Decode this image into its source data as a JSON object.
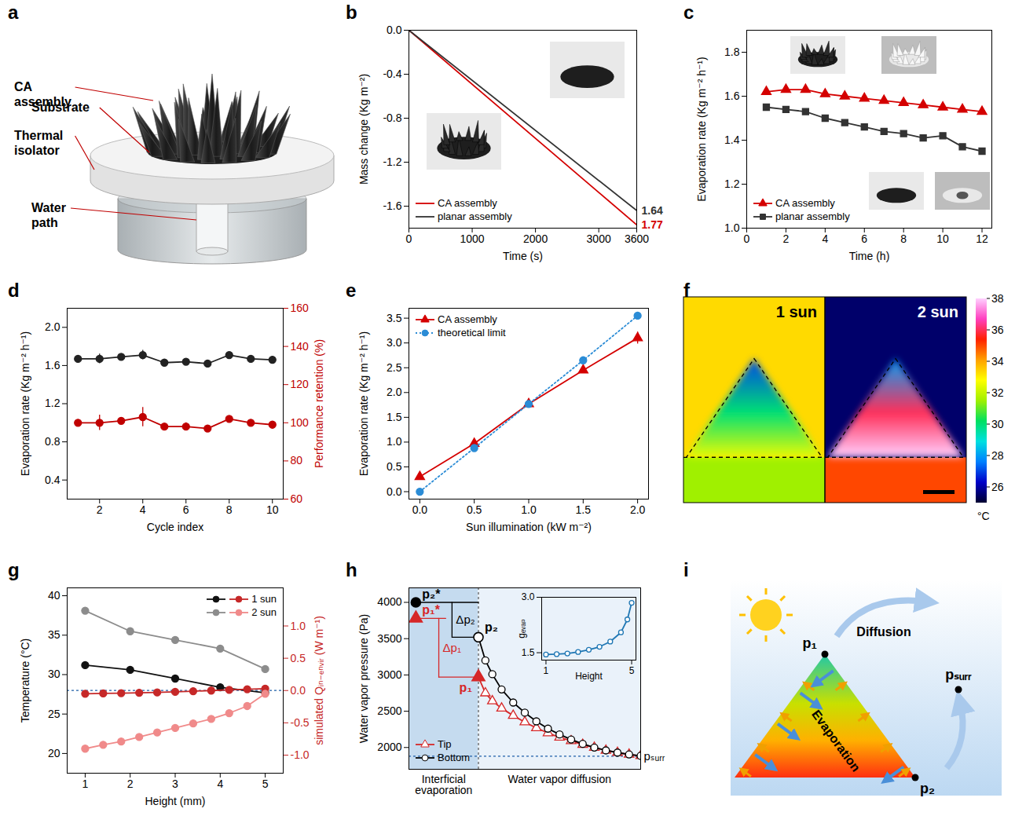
{
  "chart_data": [
    {
      "panel": "b",
      "type": "line",
      "xlabel": "Time (s)",
      "ylabel": "Mass change (Kg m⁻²)",
      "x": [
        0,
        3600
      ],
      "xlim": [
        0,
        3600
      ],
      "xticks": [
        0,
        1000,
        2000,
        3000,
        3600
      ],
      "ylim": [
        -1.8,
        0
      ],
      "yticks": [
        {
          "value": 0,
          "label": "0.0"
        },
        -0.4,
        -0.8,
        -1.2,
        -1.6
      ],
      "legend": "bottom-left",
      "series": [
        {
          "name": "CA assembly",
          "color": "#d40000",
          "values": [
            0,
            -1.77
          ],
          "end_label": "1.77"
        },
        {
          "name": "planar assembly",
          "color": "#333333",
          "values": [
            0,
            -1.64
          ],
          "end_label": "1.64"
        }
      ]
    },
    {
      "panel": "c",
      "type": "line",
      "xlabel": "Time (h)",
      "ylabel": "Evaporation rate (Kg m⁻² h⁻¹)",
      "x": [
        1,
        2,
        3,
        4,
        5,
        6,
        7,
        8,
        9,
        10,
        11,
        12
      ],
      "xlim": [
        0,
        12.5
      ],
      "xticks": [
        0,
        2,
        4,
        6,
        8,
        10,
        12
      ],
      "ylim": [
        1.0,
        1.9
      ],
      "yticks": [
        {
          "value": 1,
          "label": "1.0"
        },
        1.2,
        1.4,
        1.6,
        1.8
      ],
      "legend": "bottom-left",
      "series": [
        {
          "name": "CA assembly",
          "color": "#d40000",
          "marker": "triangle",
          "values": [
            1.62,
            1.63,
            1.63,
            1.61,
            1.6,
            1.59,
            1.58,
            1.57,
            1.56,
            1.55,
            1.54,
            1.53
          ]
        },
        {
          "name": "planar assembly",
          "color": "#333333",
          "marker": "square",
          "values": [
            1.55,
            1.54,
            1.53,
            1.5,
            1.48,
            1.46,
            1.44,
            1.43,
            1.41,
            1.42,
            1.37,
            1.35
          ]
        }
      ]
    },
    {
      "panel": "d",
      "type": "line",
      "xlabel": "Cycle index",
      "ylabel": "Evaporation rate (Kg m⁻² h⁻¹)",
      "y2label": "Performance retention (%)",
      "x": [
        1,
        2,
        3,
        4,
        5,
        6,
        7,
        8,
        9,
        10
      ],
      "xlim": [
        0.5,
        10.5
      ],
      "xticks": [
        2,
        4,
        6,
        8,
        10
      ],
      "ylim": [
        0.2,
        2.2
      ],
      "yticks": [
        0.4,
        0.8,
        1.2,
        1.6,
        {
          "value": 2,
          "label": "2.0"
        }
      ],
      "y2lim": [
        60,
        160
      ],
      "y2ticks": [
        60,
        80,
        100,
        120,
        140,
        160
      ],
      "series": [
        {
          "color": "#222222",
          "marker": "circle",
          "values": [
            1.67,
            1.67,
            1.69,
            1.71,
            1.63,
            1.64,
            1.62,
            1.71,
            1.67,
            1.66
          ],
          "errors": [
            0.02,
            0.05,
            0.02,
            0.05,
            0.02,
            0.02,
            0.02,
            0.02,
            0.02,
            0.02
          ]
        },
        {
          "color": "#c00000",
          "marker": "circle",
          "axis": "y2",
          "values": [
            100,
            100,
            101,
            103,
            98,
            98,
            97,
            102,
            100,
            99
          ],
          "errors": [
            1.5,
            4,
            1.5,
            5,
            1.5,
            2,
            1.5,
            1.5,
            1.5,
            1.5
          ]
        }
      ]
    },
    {
      "panel": "e",
      "type": "line",
      "xlabel": "Sun illumination (kW m⁻²)",
      "ylabel": "Evaporation rate (Kg m⁻² h⁻¹)",
      "x": [
        0,
        0.5,
        1,
        1.5,
        2
      ],
      "xlim": [
        -0.1,
        2.1
      ],
      "xticks": [
        {
          "value": 0,
          "label": "0.0"
        },
        0.5,
        {
          "value": 1,
          "label": "1.0"
        },
        1.5,
        {
          "value": 2,
          "label": "2.0"
        }
      ],
      "ylim": [
        -0.15,
        3.7
      ],
      "yticks": [
        {
          "value": 0,
          "label": "0.0"
        },
        0.5,
        {
          "value": 1,
          "label": "1.0"
        },
        1.5,
        {
          "value": 2,
          "label": "2.0"
        },
        2.5,
        {
          "value": 3,
          "label": "3.0"
        },
        3.5
      ],
      "legend": "top-left",
      "series": [
        {
          "name": "CA assembly",
          "color": "#d40000",
          "marker": "triangle",
          "values": [
            0.3,
            0.97,
            1.77,
            2.45,
            3.1
          ],
          "errors": [
            0.03,
            0.05,
            0.03,
            0.05,
            0.12
          ]
        },
        {
          "name": "theoretical limit",
          "color": "#2b8cd6",
          "marker": "circle",
          "line_style": "dotted",
          "values": [
            0,
            0.88,
            1.77,
            2.65,
            3.55
          ]
        }
      ]
    },
    {
      "panel": "g",
      "type": "line",
      "xlabel": "Height (mm)",
      "ylabel": "Temperature (°C)",
      "y2label": "simulated Qᵢₙ₋ₑₙᵥᵢᵣ (W m⁻¹)",
      "xlim": [
        0.6,
        5.4
      ],
      "xticks": [
        1,
        2,
        3,
        4,
        5
      ],
      "ylim": [
        17.5,
        41
      ],
      "yticks": [
        20,
        25,
        30,
        35,
        40
      ],
      "y2lim": [
        -1.28,
        1.59
      ],
      "y2ticks": [
        {
          "value": -1,
          "label": "-1.0"
        },
        -0.5,
        {
          "value": 0,
          "label": "0.0"
        },
        0.5,
        {
          "value": 1,
          "label": "1.0"
        }
      ],
      "reference_y": 28,
      "legend": "top-right",
      "series": [
        {
          "name": "1 sun",
          "color": "#111111",
          "marker": "circle",
          "x": [
            1,
            2,
            3,
            4,
            5
          ],
          "values": [
            31.2,
            30.6,
            29.5,
            28.4,
            27.7
          ]
        },
        {
          "name": "1 sun",
          "color": "#c62828",
          "marker": "circle",
          "axis": "y2",
          "x": [
            1,
            1.4,
            1.8,
            2.2,
            2.6,
            3,
            3.4,
            3.8,
            4.2,
            4.6,
            5
          ],
          "values": [
            -0.05,
            -0.045,
            -0.04,
            -0.035,
            -0.03,
            -0.02,
            -0.01,
            0.0,
            0.01,
            0.02,
            0.03
          ]
        },
        {
          "name": "2 sun",
          "color": "#8c8c8c",
          "marker": "circle",
          "x": [
            1,
            2,
            3,
            4,
            5
          ],
          "values": [
            38.1,
            35.5,
            34.4,
            33.3,
            30.7
          ]
        },
        {
          "name": "2 sun",
          "color": "#f08a8a",
          "marker": "circle",
          "axis": "y2",
          "x": [
            1,
            1.4,
            1.8,
            2.2,
            2.6,
            3,
            3.4,
            3.8,
            4.2,
            4.6,
            5
          ],
          "values": [
            -0.9,
            -0.84,
            -0.79,
            -0.72,
            -0.65,
            -0.58,
            -0.51,
            -0.44,
            -0.35,
            -0.24,
            -0.05
          ]
        }
      ]
    },
    {
      "panel": "h",
      "type": "line",
      "ylabel": "Water vapor pressure (Pa)",
      "tick_labels": "y",
      "x": [
        3,
        3.3,
        3.6,
        4,
        4.5,
        5,
        5.5,
        6,
        6.5,
        7,
        7.5,
        8,
        8.5,
        9,
        9.5,
        10
      ],
      "xlim": [
        0,
        10
      ],
      "ylim": [
        1700,
        4200
      ],
      "yticks": [
        2000,
        2500,
        3000,
        3500,
        4000
      ],
      "reference_y": 1880,
      "reference_label": "pₛᵤᵣᵣ",
      "legend": "bottom-left",
      "regions": [
        {
          "label": "Interficial evaporation",
          "x": [
            0,
            3
          ]
        },
        {
          "label": "Water vapor diffusion",
          "x": [
            3,
            10
          ]
        }
      ],
      "series": [
        {
          "name": "Tip",
          "color": "#d62728",
          "marker": "triangle-open",
          "values": [
            2970,
            2750,
            2640,
            2540,
            2440,
            2350,
            2270,
            2200,
            2140,
            2090,
            2040,
            2000,
            1960,
            1930,
            1905,
            1885
          ]
        },
        {
          "name": "Bottom",
          "color": "#000000",
          "marker": "circle-open",
          "values": [
            3520,
            3200,
            3010,
            2800,
            2620,
            2480,
            2360,
            2260,
            2180,
            2110,
            2050,
            2000,
            1960,
            1930,
            1905,
            1885
          ]
        }
      ],
      "points": [
        {
          "label": "p₂*",
          "x": 0.3,
          "y": 4000,
          "color": "#000000",
          "marker": "circle"
        },
        {
          "label": "p₁*",
          "x": 0.3,
          "y": 3780,
          "color": "#d62728",
          "marker": "triangle"
        },
        {
          "label": "p₂",
          "x": 3,
          "y": 3520,
          "color": "#000000",
          "marker": "circle-open"
        },
        {
          "label": "p₁",
          "x": 3,
          "y": 2970,
          "color": "#d62728",
          "marker": "triangle"
        }
      ],
      "brackets": [
        {
          "label": "Δp₂",
          "from": 4000,
          "to": 3520,
          "color": "#000000"
        },
        {
          "label": "Δp₁",
          "from": 3780,
          "to": 2970,
          "color": "#d62728"
        }
      ],
      "inset": {
        "type": "line",
        "xlabel": "Height",
        "ylabel": "gₑᵥₐₚ",
        "x": [
          1,
          1.5,
          2,
          2.5,
          3,
          3.5,
          4,
          4.5,
          4.8,
          5
        ],
        "xlim": [
          0.8,
          5.2
        ],
        "xticks": [
          1,
          5
        ],
        "ylim": [
          1.3,
          3.0
        ],
        "yticks": [
          1.5,
          {
            "value": 3,
            "label": "3.0"
          }
        ],
        "series": [
          {
            "color": "#1f77b4",
            "marker": "circle-open",
            "values": [
              1.45,
              1.46,
              1.48,
              1.52,
              1.58,
              1.66,
              1.8,
              2.05,
              2.4,
              2.85
            ]
          }
        ]
      }
    }
  ],
  "diagrams": {
    "a": {
      "panel": "a",
      "labels": [
        "CA assembly",
        "Substrate",
        "Thermal isolator",
        "Water path"
      ]
    },
    "f": {
      "panel": "f",
      "images": [
        {
          "label": "1 sun",
          "background": 33.3,
          "tip": 27,
          "middle": 30,
          "base": 32.5,
          "below": 31.5
        },
        {
          "label": "2 sun",
          "background": 25.5,
          "tip": 28,
          "middle": 36,
          "base": 38,
          "below": 35
        }
      ],
      "colorbar": {
        "range": [
          25,
          38
        ],
        "ticks": [
          26,
          28,
          30,
          32,
          34,
          36,
          38
        ],
        "unit": "°C",
        "colors": [
          "#000030",
          "#0000c8",
          "#0080ff",
          "#00e0e0",
          "#00e060",
          "#a0f000",
          "#ffff00",
          "#ffa000",
          "#ff2000",
          "#ff40c0",
          "#ffd0ff"
        ]
      }
    },
    "i": {
      "panel": "i",
      "labels": {
        "p1": "p₁",
        "p2": "p₂",
        "psurr": "pₛᵤᵣᵣ",
        "diffusion": "Diffusion",
        "evaporation": "Evaporation"
      }
    }
  }
}
